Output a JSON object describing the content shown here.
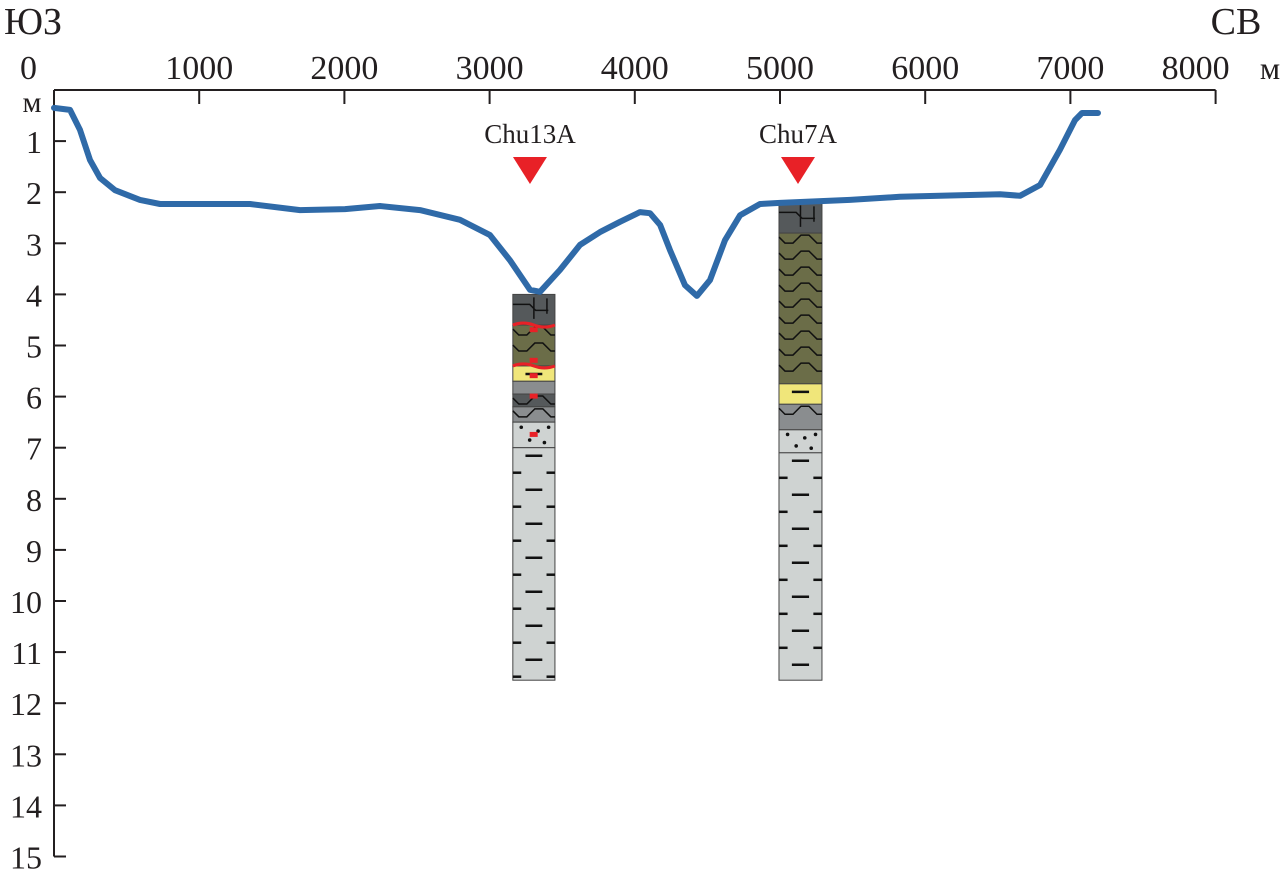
{
  "chart_data": {
    "type": "line",
    "corner_labels": {
      "left": "ЮЗ",
      "right": "СВ"
    },
    "x_unit": "м",
    "y_unit": "м",
    "xlim": [
      0,
      8000
    ],
    "ylim": [
      0,
      15
    ],
    "y_inverted": true,
    "x_ticks": [
      0,
      1000,
      2000,
      3000,
      4000,
      5000,
      6000,
      7000,
      8000
    ],
    "y_ticks": [
      1,
      2,
      3,
      4,
      5,
      6,
      7,
      8,
      9,
      10,
      11,
      12,
      13,
      14,
      15
    ],
    "grid": false,
    "series": [
      {
        "color": "#2f6aa8",
        "x": [
          0,
          110,
          179,
          248,
          317,
          420,
          592,
          730,
          1350,
          1694,
          2004,
          2245,
          2521,
          2796,
          3003,
          3140,
          3278,
          3347,
          3485,
          3623,
          3760,
          3898,
          4036,
          4105,
          4174,
          4242,
          4346,
          4428,
          4518,
          4621,
          4725,
          4862,
          5000,
          5482,
          5826,
          6515,
          6653,
          6791,
          6928,
          7032,
          7080,
          7190
        ],
        "y": [
          0.35,
          0.39,
          0.78,
          1.37,
          1.72,
          1.96,
          2.15,
          2.23,
          2.23,
          2.35,
          2.33,
          2.27,
          2.35,
          2.54,
          2.84,
          3.33,
          3.91,
          3.95,
          3.52,
          3.03,
          2.78,
          2.58,
          2.39,
          2.41,
          2.64,
          3.13,
          3.82,
          4.03,
          3.72,
          2.94,
          2.45,
          2.23,
          2.21,
          2.15,
          2.09,
          2.04,
          2.07,
          1.86,
          1.17,
          0.59,
          0.45,
          0.45
        ]
      }
    ],
    "boreholes": [
      {
        "name": "Chu13A",
        "x": 3278,
        "x_range": [
          3160,
          3450
        ],
        "marker_color": "#e82127",
        "layers": [
          {
            "top": 4.0,
            "bottom": 4.6,
            "color": "#55595b",
            "pattern": "blocks"
          },
          {
            "top": 4.6,
            "bottom": 5.4,
            "color": "#6b6d48",
            "pattern": "wavy",
            "boundary_color": "#e82127"
          },
          {
            "top": 5.4,
            "bottom": 5.7,
            "color": "#f0e67a",
            "pattern": "dashes",
            "boundary_color": "#e82127"
          },
          {
            "top": 5.7,
            "bottom": 5.95,
            "color": "#8a8d8f",
            "pattern": "none"
          },
          {
            "top": 5.95,
            "bottom": 6.2,
            "color": "#55595b",
            "pattern": "wavy"
          },
          {
            "top": 6.2,
            "bottom": 6.5,
            "color": "#8a8d8f",
            "pattern": "wavy"
          },
          {
            "top": 6.5,
            "bottom": 7.0,
            "color": "#cfd3d2",
            "pattern": "dots"
          },
          {
            "top": 7.0,
            "bottom": 11.55,
            "color": "#cfd3d2",
            "pattern": "dashes"
          }
        ],
        "samples": [
          4.7,
          5.3,
          5.6,
          6.0,
          6.75
        ]
      },
      {
        "name": "Chu7A",
        "x": 5124,
        "x_range": [
          4993,
          5289
        ],
        "marker_color": "#e82127",
        "layers": [
          {
            "top": 2.2,
            "bottom": 2.8,
            "color": "#55595b",
            "pattern": "blocks"
          },
          {
            "top": 2.8,
            "bottom": 5.75,
            "color": "#6b6d48",
            "pattern": "wavy"
          },
          {
            "top": 5.75,
            "bottom": 6.15,
            "color": "#f0e67a",
            "pattern": "dashes"
          },
          {
            "top": 6.15,
            "bottom": 6.65,
            "color": "#8a8d8f",
            "pattern": "wavy"
          },
          {
            "top": 6.65,
            "bottom": 7.1,
            "color": "#cfd3d2",
            "pattern": "dots"
          },
          {
            "top": 7.1,
            "bottom": 11.55,
            "color": "#cfd3d2",
            "pattern": "dashes"
          }
        ],
        "samples": []
      }
    ]
  }
}
